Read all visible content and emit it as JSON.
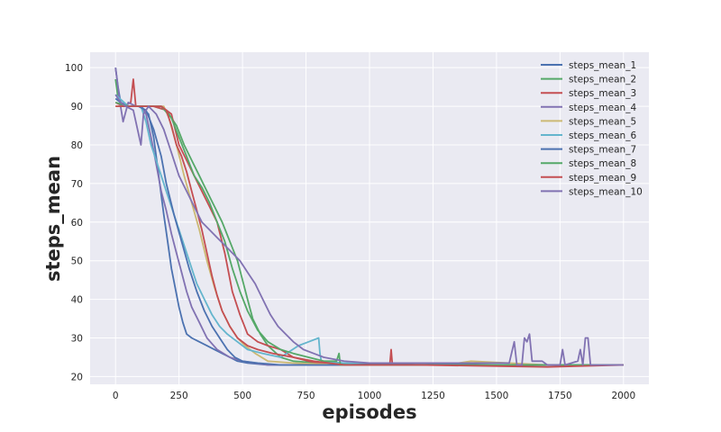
{
  "chart_data": {
    "type": "line",
    "title": "",
    "xlabel": "episodes",
    "ylabel": "steps_mean",
    "xlim": [
      -100,
      2100
    ],
    "ylim": [
      18,
      104
    ],
    "xticks": [
      0,
      250,
      500,
      750,
      1000,
      1250,
      1500,
      1750,
      2000
    ],
    "yticks": [
      20,
      30,
      40,
      50,
      60,
      70,
      80,
      90,
      100
    ],
    "grid": true,
    "legend_position": "top-right",
    "background": "#EAEAF2",
    "series": [
      {
        "name": "steps_mean_1",
        "color": "#4C72B0",
        "points": [
          [
            0,
            100
          ],
          [
            10,
            95
          ],
          [
            20,
            91
          ],
          [
            50,
            90
          ],
          [
            100,
            90
          ],
          [
            130,
            88
          ],
          [
            150,
            82
          ],
          [
            170,
            72
          ],
          [
            190,
            62
          ],
          [
            205,
            55
          ],
          [
            220,
            48
          ],
          [
            235,
            43
          ],
          [
            250,
            38
          ],
          [
            265,
            34
          ],
          [
            280,
            31
          ],
          [
            300,
            30
          ],
          [
            330,
            29
          ],
          [
            360,
            28
          ],
          [
            390,
            27
          ],
          [
            420,
            26
          ],
          [
            450,
            25
          ],
          [
            480,
            24
          ],
          [
            520,
            23.5
          ],
          [
            600,
            23
          ],
          [
            800,
            23
          ],
          [
            1000,
            23
          ],
          [
            1200,
            23
          ],
          [
            1400,
            23
          ],
          [
            1600,
            23
          ],
          [
            1800,
            23
          ],
          [
            2000,
            23
          ]
        ]
      },
      {
        "name": "steps_mean_2",
        "color": "#55A868",
        "points": [
          [
            0,
            97
          ],
          [
            10,
            92
          ],
          [
            30,
            90
          ],
          [
            80,
            90
          ],
          [
            150,
            90
          ],
          [
            200,
            89
          ],
          [
            240,
            85
          ],
          [
            270,
            80
          ],
          [
            300,
            76
          ],
          [
            330,
            72
          ],
          [
            360,
            68
          ],
          [
            390,
            64
          ],
          [
            420,
            60
          ],
          [
            450,
            55
          ],
          [
            480,
            50
          ],
          [
            500,
            45
          ],
          [
            520,
            40
          ],
          [
            540,
            35
          ],
          [
            570,
            31
          ],
          [
            600,
            28
          ],
          [
            650,
            25
          ],
          [
            700,
            24
          ],
          [
            800,
            23.5
          ],
          [
            1000,
            23
          ],
          [
            1200,
            23
          ],
          [
            1500,
            23
          ],
          [
            1800,
            23
          ],
          [
            2000,
            23
          ]
        ]
      },
      {
        "name": "steps_mean_3",
        "color": "#C44E52",
        "points": [
          [
            0,
            91
          ],
          [
            30,
            90
          ],
          [
            60,
            91
          ],
          [
            70,
            97
          ],
          [
            80,
            90
          ],
          [
            150,
            90
          ],
          [
            200,
            89
          ],
          [
            220,
            88
          ],
          [
            250,
            80
          ],
          [
            280,
            76
          ],
          [
            310,
            72
          ],
          [
            340,
            68
          ],
          [
            370,
            64
          ],
          [
            400,
            60
          ],
          [
            430,
            52
          ],
          [
            460,
            42
          ],
          [
            490,
            36
          ],
          [
            520,
            31
          ],
          [
            560,
            29
          ],
          [
            600,
            28
          ],
          [
            650,
            27
          ],
          [
            700,
            25
          ],
          [
            760,
            24
          ],
          [
            850,
            23
          ],
          [
            1000,
            23
          ],
          [
            1080,
            23
          ],
          [
            1085,
            27
          ],
          [
            1090,
            23
          ],
          [
            1300,
            23
          ],
          [
            1600,
            23
          ],
          [
            2000,
            23
          ]
        ]
      },
      {
        "name": "steps_mean_4",
        "color": "#8172B2",
        "points": [
          [
            0,
            100
          ],
          [
            15,
            92
          ],
          [
            30,
            86
          ],
          [
            50,
            91
          ],
          [
            80,
            90
          ],
          [
            100,
            90
          ],
          [
            120,
            88
          ],
          [
            140,
            82
          ],
          [
            160,
            75
          ],
          [
            180,
            68
          ],
          [
            200,
            63
          ],
          [
            220,
            57
          ],
          [
            240,
            52
          ],
          [
            260,
            47
          ],
          [
            280,
            42
          ],
          [
            300,
            38
          ],
          [
            330,
            34
          ],
          [
            360,
            30
          ],
          [
            400,
            27
          ],
          [
            450,
            25
          ],
          [
            500,
            24
          ],
          [
            600,
            23
          ],
          [
            800,
            23
          ],
          [
            1000,
            23
          ],
          [
            1500,
            23
          ],
          [
            2000,
            23
          ]
        ]
      },
      {
        "name": "steps_mean_5",
        "color": "#CCB974",
        "points": [
          [
            0,
            90
          ],
          [
            50,
            90
          ],
          [
            100,
            90
          ],
          [
            150,
            90
          ],
          [
            190,
            90
          ],
          [
            210,
            87
          ],
          [
            240,
            80
          ],
          [
            270,
            72
          ],
          [
            300,
            65
          ],
          [
            330,
            58
          ],
          [
            360,
            50
          ],
          [
            390,
            43
          ],
          [
            420,
            37
          ],
          [
            450,
            33
          ],
          [
            480,
            30
          ],
          [
            510,
            28
          ],
          [
            550,
            26
          ],
          [
            600,
            24
          ],
          [
            700,
            23.5
          ],
          [
            900,
            23
          ],
          [
            1300,
            23
          ],
          [
            1400,
            24
          ],
          [
            1700,
            23
          ],
          [
            2000,
            23
          ]
        ]
      },
      {
        "name": "steps_mean_6",
        "color": "#64B5CD",
        "points": [
          [
            0,
            93
          ],
          [
            50,
            90
          ],
          [
            100,
            90
          ],
          [
            120,
            86
          ],
          [
            140,
            80
          ],
          [
            160,
            76
          ],
          [
            180,
            72
          ],
          [
            200,
            68
          ],
          [
            230,
            62
          ],
          [
            260,
            56
          ],
          [
            290,
            50
          ],
          [
            320,
            44
          ],
          [
            350,
            40
          ],
          [
            380,
            36
          ],
          [
            410,
            33
          ],
          [
            440,
            31
          ],
          [
            480,
            29
          ],
          [
            520,
            27
          ],
          [
            580,
            26
          ],
          [
            650,
            25
          ],
          [
            720,
            28
          ],
          [
            760,
            29
          ],
          [
            800,
            30
          ],
          [
            805,
            26
          ],
          [
            810,
            24
          ],
          [
            900,
            23.5
          ],
          [
            1100,
            23
          ],
          [
            1500,
            23
          ],
          [
            2000,
            23
          ]
        ]
      },
      {
        "name": "steps_mean_7",
        "color": "#4C72B0",
        "points": [
          [
            0,
            92
          ],
          [
            40,
            90
          ],
          [
            90,
            90
          ],
          [
            120,
            89
          ],
          [
            150,
            84
          ],
          [
            180,
            77
          ],
          [
            200,
            70
          ],
          [
            230,
            62
          ],
          [
            260,
            55
          ],
          [
            290,
            48
          ],
          [
            320,
            42
          ],
          [
            350,
            37
          ],
          [
            380,
            33
          ],
          [
            410,
            30
          ],
          [
            440,
            27
          ],
          [
            470,
            25
          ],
          [
            500,
            24
          ],
          [
            560,
            23.5
          ],
          [
            650,
            23
          ],
          [
            900,
            23
          ],
          [
            1200,
            23.5
          ],
          [
            1500,
            23
          ],
          [
            2000,
            23
          ]
        ]
      },
      {
        "name": "steps_mean_8",
        "color": "#55A868",
        "points": [
          [
            0,
            91
          ],
          [
            50,
            90
          ],
          [
            120,
            90
          ],
          [
            180,
            90
          ],
          [
            220,
            87
          ],
          [
            250,
            82
          ],
          [
            280,
            77
          ],
          [
            310,
            72
          ],
          [
            340,
            69
          ],
          [
            370,
            65
          ],
          [
            400,
            60
          ],
          [
            430,
            55
          ],
          [
            460,
            48
          ],
          [
            490,
            42
          ],
          [
            520,
            37
          ],
          [
            560,
            32
          ],
          [
            600,
            29
          ],
          [
            650,
            27
          ],
          [
            700,
            26
          ],
          [
            760,
            25
          ],
          [
            820,
            24
          ],
          [
            870,
            24
          ],
          [
            880,
            26
          ],
          [
            885,
            23
          ],
          [
            950,
            23
          ],
          [
            1200,
            23
          ],
          [
            1600,
            23
          ],
          [
            2000,
            23
          ]
        ]
      },
      {
        "name": "steps_mean_9",
        "color": "#C44E52",
        "points": [
          [
            0,
            90
          ],
          [
            40,
            90
          ],
          [
            100,
            90
          ],
          [
            150,
            90
          ],
          [
            180,
            90
          ],
          [
            200,
            89
          ],
          [
            220,
            85
          ],
          [
            240,
            80
          ],
          [
            260,
            77
          ],
          [
            280,
            73
          ],
          [
            300,
            68
          ],
          [
            320,
            63
          ],
          [
            340,
            58
          ],
          [
            360,
            52
          ],
          [
            380,
            46
          ],
          [
            400,
            41
          ],
          [
            420,
            37
          ],
          [
            450,
            33
          ],
          [
            480,
            30
          ],
          [
            520,
            28
          ],
          [
            560,
            27
          ],
          [
            620,
            26
          ],
          [
            700,
            25
          ],
          [
            780,
            24
          ],
          [
            900,
            23
          ],
          [
            1200,
            23
          ],
          [
            1700,
            22.5
          ],
          [
            2000,
            23
          ]
        ]
      },
      {
        "name": "steps_mean_10",
        "color": "#8172B2",
        "points": [
          [
            0,
            93
          ],
          [
            20,
            91
          ],
          [
            40,
            90
          ],
          [
            70,
            89
          ],
          [
            100,
            80
          ],
          [
            110,
            88
          ],
          [
            130,
            90
          ],
          [
            160,
            88
          ],
          [
            190,
            84
          ],
          [
            220,
            78
          ],
          [
            250,
            72
          ],
          [
            280,
            68
          ],
          [
            310,
            64
          ],
          [
            340,
            60
          ],
          [
            370,
            58
          ],
          [
            400,
            56
          ],
          [
            430,
            54
          ],
          [
            460,
            52
          ],
          [
            490,
            50
          ],
          [
            520,
            47
          ],
          [
            550,
            44
          ],
          [
            580,
            40
          ],
          [
            610,
            36
          ],
          [
            640,
            33
          ],
          [
            670,
            31
          ],
          [
            700,
            29
          ],
          [
            740,
            27
          ],
          [
            780,
            26
          ],
          [
            820,
            25
          ],
          [
            900,
            24
          ],
          [
            1000,
            23.5
          ],
          [
            1200,
            23.5
          ],
          [
            1400,
            23.5
          ],
          [
            1550,
            23.5
          ],
          [
            1570,
            29
          ],
          [
            1580,
            23
          ],
          [
            1600,
            23
          ],
          [
            1610,
            30
          ],
          [
            1620,
            29
          ],
          [
            1630,
            31
          ],
          [
            1640,
            24
          ],
          [
            1680,
            24
          ],
          [
            1700,
            23
          ],
          [
            1750,
            23
          ],
          [
            1760,
            27
          ],
          [
            1770,
            23
          ],
          [
            1820,
            24
          ],
          [
            1830,
            27
          ],
          [
            1840,
            23
          ],
          [
            1850,
            30
          ],
          [
            1860,
            30
          ],
          [
            1870,
            23
          ],
          [
            1900,
            23
          ],
          [
            2000,
            23
          ]
        ]
      }
    ]
  }
}
